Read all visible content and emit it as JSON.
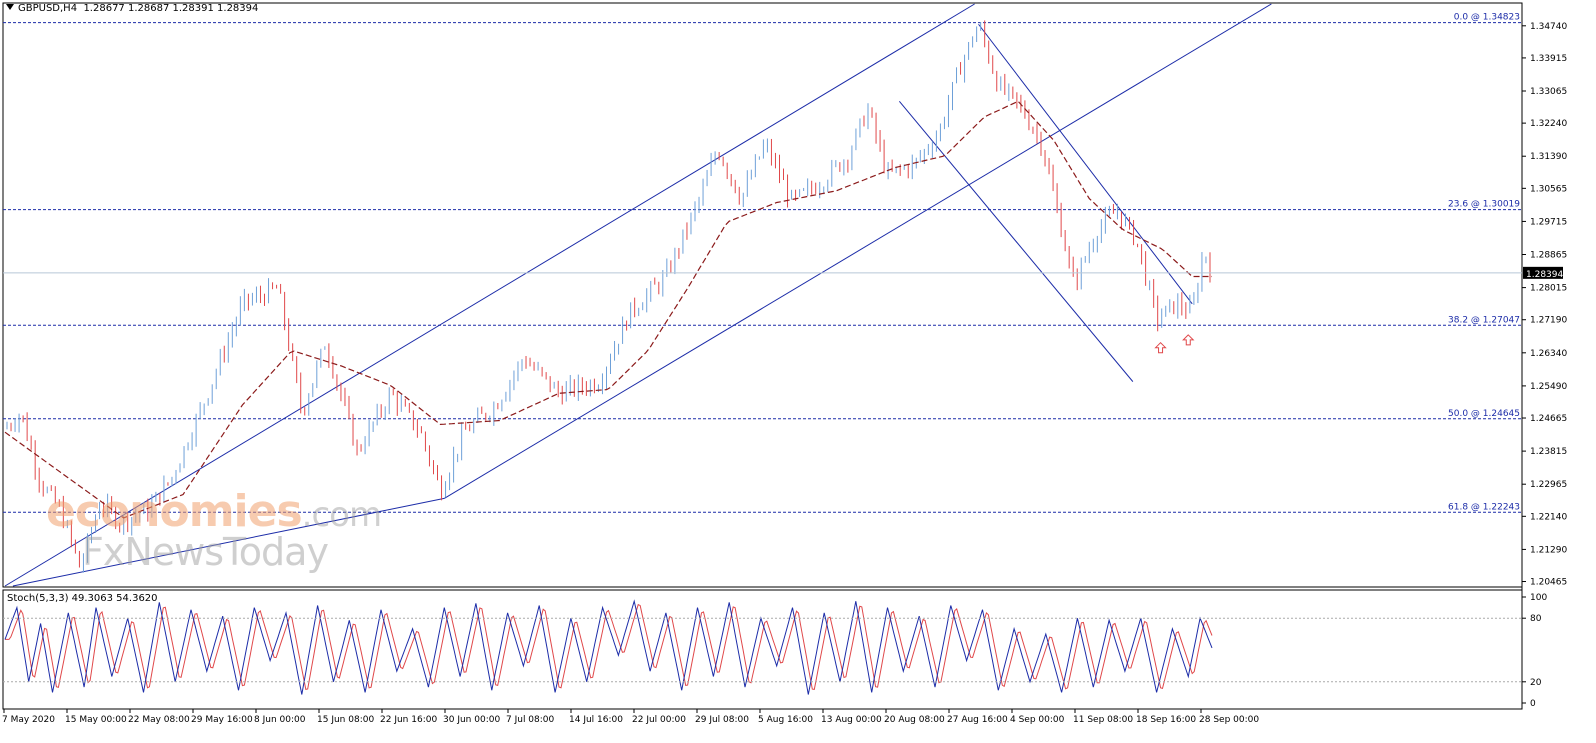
{
  "header": {
    "symbol": "GBPUSD,H4",
    "ohlc": "1.28677 1.28687 1.28391 1.28394"
  },
  "stochastic": {
    "label": "Stoch(5,3,3) 49.3063 54.3620",
    "levels": [
      "100",
      "80",
      "20",
      "0"
    ]
  },
  "watermark": {
    "brand": "economies",
    "suffix": ".com",
    "sub": "FxNewsToday"
  },
  "colors": {
    "bull": "#6ea0d8",
    "bear": "#e0484a",
    "channel": "#1c2ca8",
    "fib": "#1c2ca8",
    "ma": "#8b1a1a",
    "stoch_main": "#1c2ca8",
    "stoch_signal": "#e0484a",
    "arrow": "#e0484a",
    "current_price_bg": "#000000"
  },
  "chart_data": {
    "type": "candlestick",
    "title": "GBPUSD,H4",
    "y_ticks": [
      "1.34740",
      "1.33915",
      "1.33065",
      "1.32240",
      "1.31390",
      "1.30565",
      "1.29715",
      "1.28865",
      "1.28015",
      "1.27190",
      "1.26340",
      "1.25490",
      "1.24665",
      "1.23815",
      "1.22965",
      "1.22140",
      "1.21290",
      "1.20465"
    ],
    "ylim": [
      1.2035,
      1.353
    ],
    "x_ticks": [
      "7 May 2020",
      "15 May 00:00",
      "22 May 08:00",
      "29 May 16:00",
      "8 Jun 00:00",
      "15 Jun 08:00",
      "22 Jun 16:00",
      "30 Jun 00:00",
      "7 Jul 08:00",
      "14 Jul 16:00",
      "22 Jul 00:00",
      "29 Jul 08:00",
      "5 Aug 16:00",
      "13 Aug 00:00",
      "20 Aug 08:00",
      "27 Aug 16:00",
      "4 Sep 00:00",
      "11 Sep 08:00",
      "18 Sep 16:00",
      "28 Sep 00:00"
    ],
    "current_price": "1.28394",
    "fibonacci": [
      {
        "label": "0.0 @ 1.34823",
        "value": 1.34823
      },
      {
        "label": "23.6 @ 1.30019",
        "value": 1.30019
      },
      {
        "label": "38.2 @ 1.27047",
        "value": 1.27047
      },
      {
        "label": "50.0 @ 1.24645",
        "value": 1.24645
      },
      {
        "label": "61.8 @ 1.22243",
        "value": 1.22243
      }
    ],
    "swing_points": [
      {
        "t": 0,
        "p": 1.244
      },
      {
        "t": 8,
        "p": 1.248
      },
      {
        "t": 18,
        "p": 1.23
      },
      {
        "t": 28,
        "p": 1.223
      },
      {
        "t": 38,
        "p": 1.208
      },
      {
        "t": 48,
        "p": 1.225
      },
      {
        "t": 58,
        "p": 1.22
      },
      {
        "t": 72,
        "p": 1.223
      },
      {
        "t": 84,
        "p": 1.231
      },
      {
        "t": 100,
        "p": 1.25
      },
      {
        "t": 120,
        "p": 1.276
      },
      {
        "t": 138,
        "p": 1.28
      },
      {
        "t": 150,
        "p": 1.248
      },
      {
        "t": 162,
        "p": 1.266
      },
      {
        "t": 178,
        "p": 1.238
      },
      {
        "t": 195,
        "p": 1.253
      },
      {
        "t": 210,
        "p": 1.243
      },
      {
        "t": 220,
        "p": 1.228
      },
      {
        "t": 232,
        "p": 1.243
      },
      {
        "t": 248,
        "p": 1.25
      },
      {
        "t": 262,
        "p": 1.262
      },
      {
        "t": 280,
        "p": 1.253
      },
      {
        "t": 300,
        "p": 1.256
      },
      {
        "t": 316,
        "p": 1.274
      },
      {
        "t": 334,
        "p": 1.283
      },
      {
        "t": 352,
        "p": 1.304
      },
      {
        "t": 360,
        "p": 1.316
      },
      {
        "t": 372,
        "p": 1.303
      },
      {
        "t": 384,
        "p": 1.317
      },
      {
        "t": 398,
        "p": 1.302
      },
      {
        "t": 414,
        "p": 1.308
      },
      {
        "t": 426,
        "p": 1.314
      },
      {
        "t": 436,
        "p": 1.326
      },
      {
        "t": 446,
        "p": 1.309
      },
      {
        "t": 460,
        "p": 1.312
      },
      {
        "t": 472,
        "p": 1.32
      },
      {
        "t": 482,
        "p": 1.336
      },
      {
        "t": 492,
        "p": 1.3478
      },
      {
        "t": 502,
        "p": 1.332
      },
      {
        "t": 514,
        "p": 1.326
      },
      {
        "t": 524,
        "p": 1.317
      },
      {
        "t": 534,
        "p": 1.295
      },
      {
        "t": 540,
        "p": 1.281
      },
      {
        "t": 552,
        "p": 1.295
      },
      {
        "t": 562,
        "p": 1.3
      },
      {
        "t": 572,
        "p": 1.292
      },
      {
        "t": 582,
        "p": 1.272
      },
      {
        "t": 592,
        "p": 1.276
      },
      {
        "t": 600,
        "p": 1.274
      },
      {
        "t": 606,
        "p": 1.29
      },
      {
        "t": 610,
        "p": 1.2839
      }
    ],
    "ma_points": [
      {
        "t": 0,
        "p": 1.243
      },
      {
        "t": 30,
        "p": 1.232
      },
      {
        "t": 60,
        "p": 1.221
      },
      {
        "t": 90,
        "p": 1.227
      },
      {
        "t": 120,
        "p": 1.25
      },
      {
        "t": 145,
        "p": 1.264
      },
      {
        "t": 170,
        "p": 1.26
      },
      {
        "t": 195,
        "p": 1.255
      },
      {
        "t": 220,
        "p": 1.245
      },
      {
        "t": 250,
        "p": 1.246
      },
      {
        "t": 280,
        "p": 1.253
      },
      {
        "t": 305,
        "p": 1.254
      },
      {
        "t": 325,
        "p": 1.264
      },
      {
        "t": 345,
        "p": 1.28
      },
      {
        "t": 365,
        "p": 1.297
      },
      {
        "t": 390,
        "p": 1.302
      },
      {
        "t": 420,
        "p": 1.305
      },
      {
        "t": 450,
        "p": 1.311
      },
      {
        "t": 475,
        "p": 1.314
      },
      {
        "t": 495,
        "p": 1.324
      },
      {
        "t": 512,
        "p": 1.328
      },
      {
        "t": 530,
        "p": 1.318
      },
      {
        "t": 548,
        "p": 1.303
      },
      {
        "t": 565,
        "p": 1.295
      },
      {
        "t": 585,
        "p": 1.29
      },
      {
        "t": 600,
        "p": 1.283
      },
      {
        "t": 610,
        "p": 1.283
      }
    ],
    "stoch_points": [
      {
        "t": 0,
        "v": 60
      },
      {
        "t": 6,
        "v": 90
      },
      {
        "t": 12,
        "v": 20
      },
      {
        "t": 18,
        "v": 75
      },
      {
        "t": 24,
        "v": 10
      },
      {
        "t": 32,
        "v": 85
      },
      {
        "t": 40,
        "v": 15
      },
      {
        "t": 46,
        "v": 90
      },
      {
        "t": 54,
        "v": 25
      },
      {
        "t": 62,
        "v": 80
      },
      {
        "t": 70,
        "v": 10
      },
      {
        "t": 78,
        "v": 95
      },
      {
        "t": 86,
        "v": 20
      },
      {
        "t": 94,
        "v": 88
      },
      {
        "t": 102,
        "v": 30
      },
      {
        "t": 110,
        "v": 82
      },
      {
        "t": 118,
        "v": 12
      },
      {
        "t": 126,
        "v": 90
      },
      {
        "t": 134,
        "v": 40
      },
      {
        "t": 142,
        "v": 85
      },
      {
        "t": 150,
        "v": 8
      },
      {
        "t": 158,
        "v": 92
      },
      {
        "t": 166,
        "v": 20
      },
      {
        "t": 174,
        "v": 78
      },
      {
        "t": 182,
        "v": 10
      },
      {
        "t": 190,
        "v": 88
      },
      {
        "t": 198,
        "v": 30
      },
      {
        "t": 206,
        "v": 70
      },
      {
        "t": 214,
        "v": 15
      },
      {
        "t": 222,
        "v": 90
      },
      {
        "t": 230,
        "v": 25
      },
      {
        "t": 238,
        "v": 94
      },
      {
        "t": 246,
        "v": 12
      },
      {
        "t": 254,
        "v": 85
      },
      {
        "t": 262,
        "v": 35
      },
      {
        "t": 270,
        "v": 92
      },
      {
        "t": 278,
        "v": 10
      },
      {
        "t": 286,
        "v": 80
      },
      {
        "t": 294,
        "v": 20
      },
      {
        "t": 302,
        "v": 90
      },
      {
        "t": 310,
        "v": 45
      },
      {
        "t": 318,
        "v": 96
      },
      {
        "t": 326,
        "v": 30
      },
      {
        "t": 334,
        "v": 85
      },
      {
        "t": 342,
        "v": 12
      },
      {
        "t": 350,
        "v": 90
      },
      {
        "t": 358,
        "v": 25
      },
      {
        "t": 366,
        "v": 95
      },
      {
        "t": 374,
        "v": 15
      },
      {
        "t": 382,
        "v": 80
      },
      {
        "t": 390,
        "v": 35
      },
      {
        "t": 398,
        "v": 90
      },
      {
        "t": 406,
        "v": 8
      },
      {
        "t": 414,
        "v": 85
      },
      {
        "t": 422,
        "v": 20
      },
      {
        "t": 430,
        "v": 96
      },
      {
        "t": 438,
        "v": 10
      },
      {
        "t": 446,
        "v": 90
      },
      {
        "t": 454,
        "v": 30
      },
      {
        "t": 462,
        "v": 82
      },
      {
        "t": 470,
        "v": 15
      },
      {
        "t": 478,
        "v": 92
      },
      {
        "t": 486,
        "v": 40
      },
      {
        "t": 494,
        "v": 88
      },
      {
        "t": 502,
        "v": 12
      },
      {
        "t": 510,
        "v": 70
      },
      {
        "t": 518,
        "v": 20
      },
      {
        "t": 526,
        "v": 65
      },
      {
        "t": 534,
        "v": 10
      },
      {
        "t": 542,
        "v": 80
      },
      {
        "t": 550,
        "v": 15
      },
      {
        "t": 558,
        "v": 78
      },
      {
        "t": 566,
        "v": 30
      },
      {
        "t": 574,
        "v": 80
      },
      {
        "t": 582,
        "v": 10
      },
      {
        "t": 590,
        "v": 70
      },
      {
        "t": 598,
        "v": 25
      },
      {
        "t": 604,
        "v": 80
      },
      {
        "t": 610,
        "v": 52
      }
    ]
  }
}
